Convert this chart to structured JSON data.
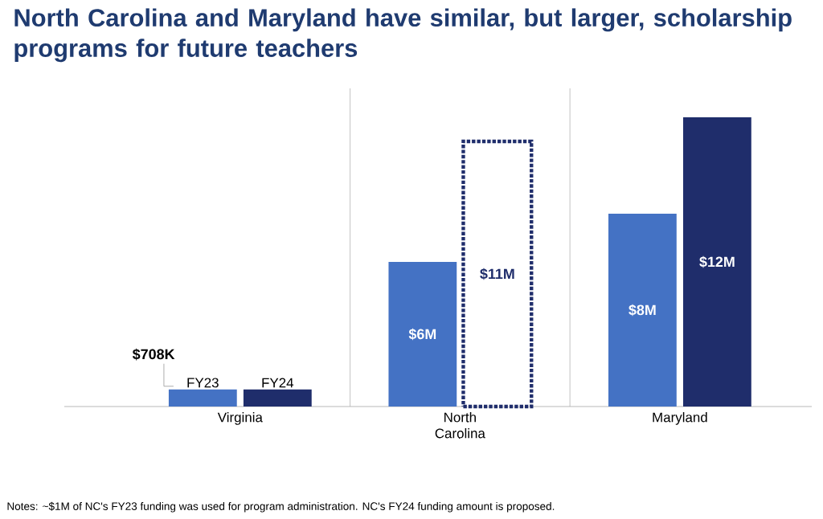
{
  "chart_data": {
    "type": "bar",
    "title": "North Carolina and Maryland have similar, but larger, scholarship programs for future teachers",
    "categories": [
      "Virginia",
      "North Carolina",
      "Maryland"
    ],
    "series": [
      {
        "name": "FY23",
        "color": "#4472c4",
        "values": [
          708000,
          6000000,
          8000000
        ],
        "value_labels": [
          "$708K",
          "$6M",
          "$8M"
        ]
      },
      {
        "name": "FY24",
        "color": "#1f2d6b",
        "colors": [
          "#1f2d6b",
          "#ffffff",
          "#1f2d6b"
        ],
        "values": [
          708000,
          11000000,
          12000000
        ],
        "value_labels": [
          null,
          "$11M",
          "$12M"
        ]
      }
    ],
    "legend": false,
    "annotations": [
      "Notes: ~$1M of NC's FY23 funding was used for program administration. NC's FY24 funding amount is proposed."
    ]
  }
}
